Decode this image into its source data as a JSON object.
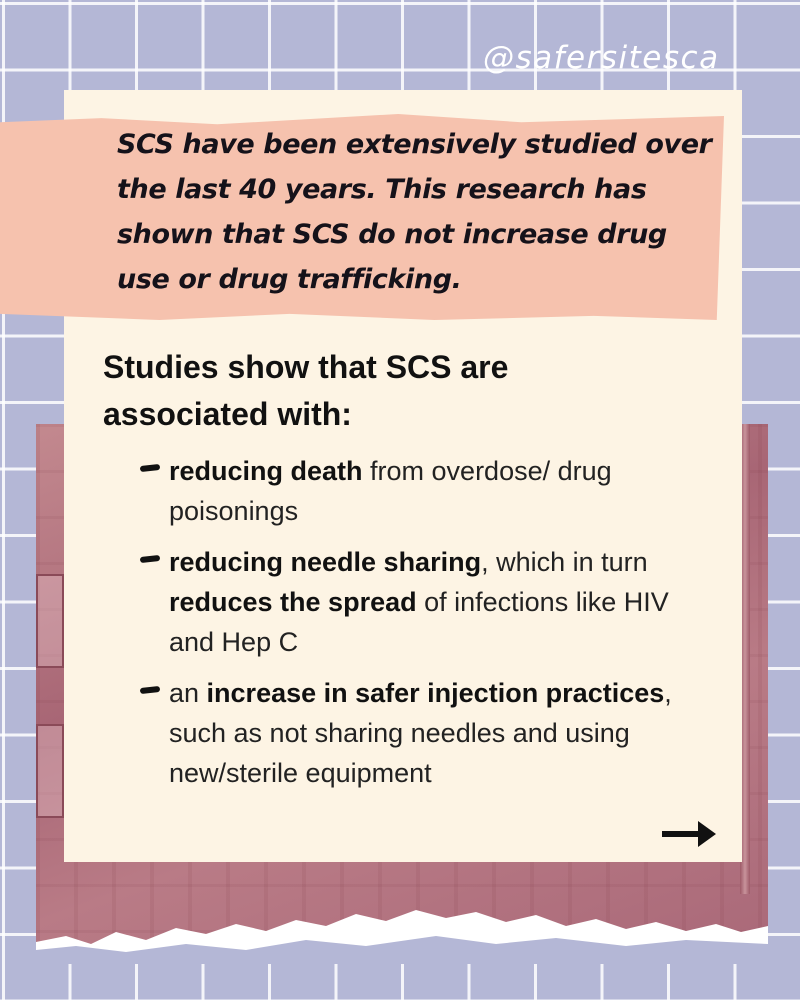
{
  "handle": "@safersitesca",
  "intro_text": "SCS have been extensively studied over the last 40 years. This research has shown that SCS do not increase drug use or drug trafficking.",
  "heading": "Studies show that SCS are associated with:",
  "items": [
    {
      "parts": [
        {
          "text": "reducing death",
          "bold": true
        },
        {
          "text": " from overdose/ drug poisonings",
          "bold": false
        }
      ]
    },
    {
      "parts": [
        {
          "text": "reducing needle sharing",
          "bold": true
        },
        {
          "text": ", which in turn ",
          "bold": false
        },
        {
          "text": "reduces the spread",
          "bold": true
        },
        {
          "text": " of infections like HIV and Hep C",
          "bold": false
        }
      ]
    },
    {
      "parts": [
        {
          "text": "an ",
          "bold": false
        },
        {
          "text": "increase in safer injection practices",
          "bold": true
        },
        {
          "text": ", such as not sharing needles and using new/sterile equipment",
          "bold": false
        }
      ]
    }
  ],
  "icons": {
    "bullet": "dash-bullet-icon",
    "next": "right-arrow-icon"
  },
  "colors": {
    "grid_background": "#b4b7d6",
    "card_background": "#fdf4e4",
    "ribbon": "#f6c2ae",
    "photo_tint": "#b07080",
    "text": "#111111"
  }
}
